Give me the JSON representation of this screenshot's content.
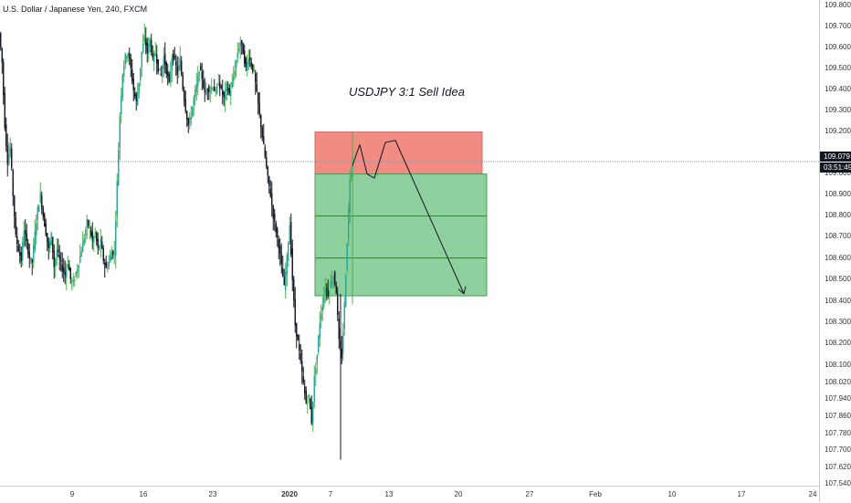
{
  "header": {
    "symbol_title": "U.S. Dollar / Japanese Yen, 240, FXCM"
  },
  "annotation": {
    "text": "USDJPY 3:1 Sell Idea"
  },
  "current": {
    "price_label": "109.079",
    "countdown": "03:51:49"
  },
  "colors": {
    "up": "#26a69a",
    "up_wick": "#4caf50",
    "down": "#131722",
    "stop_zone": "#f28b82",
    "target_zone": "#8fd19e",
    "zone_lines": "#2e7d32",
    "price_line": "#9598a1"
  },
  "price_axis": {
    "labels": [
      "109.800",
      "109.700",
      "109.600",
      "109.500",
      "109.400",
      "109.300",
      "109.200",
      "109.000",
      "108.900",
      "108.800",
      "108.700",
      "108.600",
      "108.500",
      "108.400",
      "108.300",
      "108.200",
      "108.100",
      "108.020",
      "107.940",
      "107.860",
      "107.780",
      "107.700",
      "107.620",
      "107.540"
    ]
  },
  "time_axis": {
    "labels": [
      {
        "text": "9",
        "bold": false
      },
      {
        "text": "16",
        "bold": false
      },
      {
        "text": "23",
        "bold": false
      },
      {
        "text": "2020",
        "bold": true
      },
      {
        "text": "7",
        "bold": false
      },
      {
        "text": "13",
        "bold": false
      },
      {
        "text": "20",
        "bold": false
      },
      {
        "text": "27",
        "bold": false
      },
      {
        "text": "Feb",
        "bold": false
      },
      {
        "text": "10",
        "bold": false
      },
      {
        "text": "17",
        "bold": false
      },
      {
        "text": "24",
        "bold": false
      }
    ]
  },
  "trade_idea": {
    "direction": "sell",
    "entry": 109.02,
    "stop": 109.22,
    "targets": [
      108.82,
      108.62
    ],
    "final_target": 108.44
  },
  "chart_data": {
    "type": "candlestick",
    "symbol": "USDJPY",
    "timeframe": "240",
    "ylim": [
      107.54,
      109.82
    ],
    "grid": false,
    "last_price": 109.079,
    "path_points": [
      [
        0,
        109.69
      ],
      [
        3,
        109.55
      ],
      [
        6,
        109.25
      ],
      [
        9,
        109.08
      ],
      [
        12,
        109.15
      ],
      [
        15,
        108.92
      ],
      [
        18,
        108.72
      ],
      [
        21,
        108.66
      ],
      [
        24,
        108.61
      ],
      [
        27,
        108.76
      ],
      [
        30,
        108.69
      ],
      [
        33,
        108.62
      ],
      [
        36,
        108.6
      ],
      [
        39,
        108.74
      ],
      [
        42,
        108.85
      ],
      [
        45,
        108.92
      ],
      [
        48,
        108.82
      ],
      [
        51,
        108.74
      ],
      [
        54,
        108.66
      ],
      [
        57,
        108.73
      ],
      [
        60,
        108.58
      ],
      [
        63,
        108.66
      ],
      [
        66,
        108.61
      ],
      [
        69,
        108.57
      ],
      [
        72,
        108.54
      ],
      [
        75,
        108.6
      ],
      [
        78,
        108.52
      ],
      [
        81,
        108.5
      ],
      [
        84,
        108.55
      ],
      [
        87,
        108.6
      ],
      [
        90,
        108.66
      ],
      [
        93,
        108.72
      ],
      [
        96,
        108.79
      ],
      [
        99,
        108.76
      ],
      [
        102,
        108.7
      ],
      [
        105,
        108.74
      ],
      [
        108,
        108.66
      ],
      [
        111,
        108.7
      ],
      [
        114,
        108.61
      ],
      [
        117,
        108.57
      ],
      [
        120,
        108.6
      ],
      [
        123,
        108.65
      ],
      [
        126,
        108.64
      ],
      [
        129,
        108.98
      ],
      [
        132,
        109.3
      ],
      [
        135,
        109.5
      ],
      [
        138,
        109.58
      ],
      [
        141,
        109.6
      ],
      [
        144,
        109.52
      ],
      [
        147,
        109.42
      ],
      [
        150,
        109.36
      ],
      [
        153,
        109.46
      ],
      [
        156,
        109.6
      ],
      [
        159,
        109.67
      ],
      [
        162,
        109.6
      ],
      [
        165,
        109.66
      ],
      [
        168,
        109.56
      ],
      [
        171,
        109.6
      ],
      [
        174,
        109.52
      ],
      [
        177,
        109.49
      ],
      [
        180,
        109.58
      ],
      [
        183,
        109.51
      ],
      [
        186,
        109.45
      ],
      [
        189,
        109.58
      ],
      [
        192,
        109.56
      ],
      [
        195,
        109.5
      ],
      [
        198,
        109.56
      ],
      [
        201,
        109.43
      ],
      [
        204,
        109.33
      ],
      [
        207,
        109.25
      ],
      [
        210,
        109.3
      ],
      [
        213,
        109.38
      ],
      [
        216,
        109.44
      ],
      [
        219,
        109.52
      ],
      [
        222,
        109.48
      ],
      [
        225,
        109.4
      ],
      [
        228,
        109.43
      ],
      [
        231,
        109.42
      ],
      [
        234,
        109.44
      ],
      [
        237,
        109.4
      ],
      [
        240,
        109.46
      ],
      [
        243,
        109.42
      ],
      [
        246,
        109.38
      ],
      [
        249,
        109.44
      ],
      [
        252,
        109.4
      ],
      [
        255,
        109.45
      ],
      [
        258,
        109.52
      ],
      [
        261,
        109.6
      ],
      [
        264,
        109.65
      ],
      [
        267,
        109.6
      ],
      [
        270,
        109.52
      ],
      [
        273,
        109.58
      ],
      [
        276,
        109.54
      ],
      [
        279,
        109.5
      ],
      [
        282,
        109.4
      ],
      [
        285,
        109.3
      ],
      [
        288,
        109.2
      ],
      [
        291,
        109.1
      ],
      [
        294,
        109.0
      ],
      [
        297,
        108.92
      ],
      [
        300,
        108.82
      ],
      [
        303,
        108.75
      ],
      [
        306,
        108.68
      ],
      [
        309,
        108.58
      ],
      [
        312,
        108.48
      ],
      [
        315,
        108.62
      ],
      [
        318,
        108.78
      ],
      [
        321,
        108.52
      ],
      [
        324,
        108.3
      ],
      [
        327,
        108.22
      ],
      [
        330,
        108.12
      ],
      [
        333,
        108.02
      ],
      [
        336,
        107.93
      ],
      [
        339,
        107.96
      ],
      [
        342,
        107.84
      ],
      [
        345,
        108.05
      ],
      [
        348,
        108.16
      ],
      [
        351,
        108.32
      ],
      [
        354,
        108.4
      ],
      [
        357,
        108.48
      ],
      [
        360,
        108.45
      ],
      [
        363,
        108.5
      ],
      [
        366,
        108.54
      ],
      [
        369,
        108.46
      ],
      [
        372,
        108.22
      ],
      [
        375,
        108.15
      ],
      [
        378,
        108.4
      ],
      [
        381,
        108.7
      ],
      [
        384,
        109.0
      ],
      [
        387,
        109.08
      ]
    ],
    "annotation_lines": [
      {
        "name": "entry-1",
        "from": [
          386,
          109.06
        ],
        "to": [
          394,
          109.16
        ]
      },
      {
        "name": "entry-2",
        "from": [
          394,
          109.16
        ],
        "to": [
          402,
          109.02
        ]
      },
      {
        "name": "entry-3",
        "from": [
          402,
          109.02
        ],
        "to": [
          410,
          109.0
        ]
      },
      {
        "name": "entry-4",
        "from": [
          410,
          109.0
        ],
        "to": [
          422,
          109.17
        ]
      },
      {
        "name": "entry-5",
        "from": [
          422,
          109.17
        ],
        "to": [
          433,
          109.18
        ]
      },
      {
        "name": "drop",
        "from": [
          433,
          109.18
        ],
        "to": [
          508,
          108.45
        ]
      }
    ]
  }
}
